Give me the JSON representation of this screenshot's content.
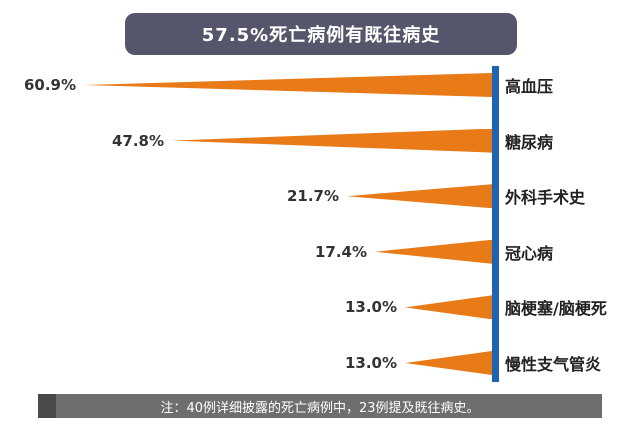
{
  "title": "57.5%死亡病例有既往病史",
  "note": "注：40例详细披露的死亡病例中，23例提及既往病史。",
  "colors": {
    "bar": "#E87A17",
    "axis": "#1F64B0",
    "title_bg": "#55566B",
    "title_text": "#FFFFFF",
    "note_bg": "#6E6E6E",
    "note_accent": "#4A4A4A",
    "label_text": "#333333"
  },
  "chart_data": {
    "type": "bar",
    "orientation": "horizontal-wedges-pointing-left",
    "title": "57.5%死亡病例有既往病史",
    "categories": [
      "高血压",
      "糖尿病",
      "外科手术史",
      "冠心病",
      "脑梗塞/脑梗死",
      "慢性支气管炎"
    ],
    "values": [
      60.9,
      47.8,
      21.7,
      17.4,
      13.0,
      13.0
    ],
    "value_labels": [
      "60.9%",
      "47.8%",
      "21.7%",
      "17.4%",
      "13.0%",
      "13.0%"
    ],
    "xlim": [
      0,
      60.9
    ],
    "legend": "none",
    "grid": "off",
    "note": "注：40例详细披露的死亡病例中，23例提及既往病史。"
  }
}
